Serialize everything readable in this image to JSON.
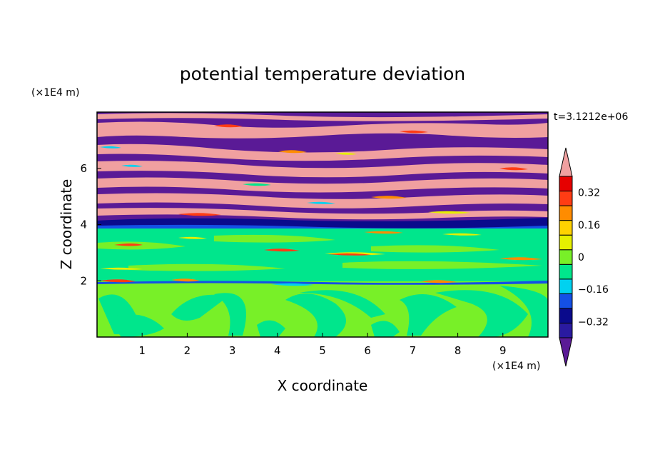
{
  "chart_data": {
    "type": "heatmap",
    "title": "potential temperature deviation",
    "xlabel": "X coordinate",
    "ylabel": "Z coordinate",
    "x_unit": "(×1E4 m)",
    "y_unit": "(×1E4 m)",
    "time_label": "t=3.1212e+06",
    "xlim": [
      0,
      10
    ],
    "ylim": [
      0,
      8
    ],
    "x_ticks": [
      1,
      2,
      3,
      4,
      5,
      6,
      7,
      8,
      9
    ],
    "y_ticks": [
      2,
      4,
      6
    ],
    "colorbar": {
      "levels": [
        -0.48,
        -0.4,
        -0.32,
        -0.24,
        -0.16,
        -0.08,
        0,
        0.08,
        0.16,
        0.24,
        0.32,
        0.4,
        0.48
      ],
      "colors": [
        "#5a1a96",
        "#2a1aa0",
        "#0a0a8c",
        "#1450e6",
        "#00d2f0",
        "#00e68c",
        "#78f028",
        "#e6f000",
        "#ffd200",
        "#ff8c00",
        "#ff3c14",
        "#e60000",
        "#f0a0a0"
      ],
      "labels": [
        "-0.32",
        "-0.16",
        "0",
        "0.16",
        "0.32"
      ],
      "label_values": [
        -0.32,
        -0.16,
        0,
        0.16,
        0.32
      ],
      "extend": "both"
    },
    "regions": [
      {
        "z_range": [
          0,
          1.95
        ],
        "value": 0.04,
        "note": "light green with mint swirls"
      },
      {
        "z_range": [
          1.95,
          3.85
        ],
        "value": -0.04,
        "note": "mint band with thin warm streaks"
      },
      {
        "z_range": [
          3.85,
          4.2
        ],
        "value": -0.36,
        "note": "dark blue interface"
      },
      {
        "z_range": [
          4.2,
          8.0
        ],
        "value_alternating": [
          0.5,
          -0.5
        ],
        "note": "alternating pink and purple stripes"
      }
    ],
    "grid": false
  }
}
